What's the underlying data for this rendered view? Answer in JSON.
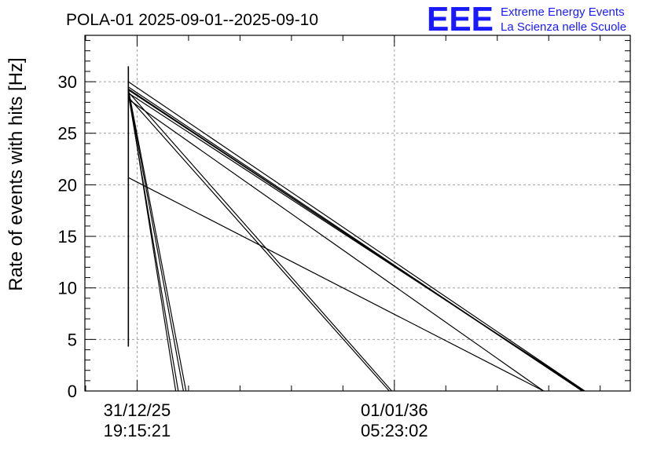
{
  "chart_data": {
    "type": "line",
    "title": "POLA-01 2025-09-01--2025-09-10",
    "ylabel": "Rate of events with hits [Hz]",
    "xlabel": "",
    "ylim": [
      0,
      34.5
    ],
    "y_ticks": [
      0,
      5,
      10,
      15,
      20,
      25,
      30
    ],
    "x_ticks": [
      {
        "date": "31/12/25",
        "time": "19:15:21"
      },
      {
        "date": "01/01/36",
        "time": "05:23:02"
      }
    ],
    "grid": true,
    "legend": "none",
    "x_units": "years since 31/12/25 19:15:21",
    "xlim": [
      -2.03,
      19.17
    ],
    "vertical_spike": {
      "x": -0.34,
      "y": [
        4.3,
        31.5
      ]
    },
    "series": [
      {
        "values": [
          [
            -0.34,
            30.0
          ],
          [
            17.4,
            0
          ]
        ]
      },
      {
        "values": [
          [
            -0.34,
            29.5
          ],
          [
            17.3,
            0
          ]
        ]
      },
      {
        "values": [
          [
            -0.34,
            29.3
          ],
          [
            17.3,
            0
          ]
        ]
      },
      {
        "values": [
          [
            -0.34,
            29.2
          ],
          [
            17.35,
            0
          ]
        ]
      },
      {
        "values": [
          [
            -0.34,
            28.3
          ],
          [
            15.8,
            0
          ]
        ]
      },
      {
        "values": [
          [
            -0.34,
            28.9
          ],
          [
            17.4,
            0
          ]
        ]
      },
      {
        "values": [
          [
            -0.34,
            20.7
          ],
          [
            15.8,
            0
          ]
        ]
      },
      {
        "values": [
          [
            -0.34,
            29.0
          ],
          [
            9.9,
            0
          ]
        ]
      },
      {
        "values": [
          [
            -0.34,
            28.5
          ],
          [
            9.8,
            0
          ]
        ]
      },
      {
        "values": [
          [
            -0.34,
            29.1
          ],
          [
            1.5,
            0
          ]
        ]
      },
      {
        "values": [
          [
            -0.34,
            28.8
          ],
          [
            1.6,
            0
          ]
        ]
      },
      {
        "values": [
          [
            -0.34,
            29.3
          ],
          [
            1.9,
            0
          ]
        ]
      },
      {
        "values": [
          [
            -0.34,
            29.0
          ],
          [
            1.8,
            0
          ]
        ]
      }
    ]
  },
  "branding": {
    "logo": "EEE",
    "line1": "Extreme Energy Events",
    "line2": "La Scienza nelle Scuole",
    "color": "#1a1aff"
  }
}
